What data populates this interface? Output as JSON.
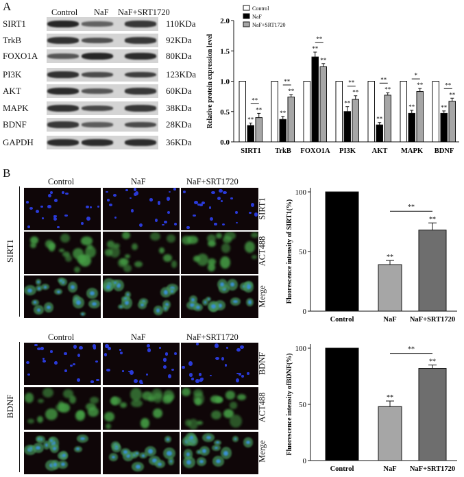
{
  "panelA": {
    "letter": "A",
    "blot_header": [
      "Control",
      "NaF",
      "NaF+SRT1720"
    ],
    "proteins": [
      {
        "name": "SIRT1",
        "kda": "110KDa",
        "bands": [
          0.85,
          0.35,
          0.7
        ]
      },
      {
        "name": "TrkB",
        "kda": "92KDa",
        "bands": [
          0.75,
          0.5,
          0.7
        ]
      },
      {
        "name": "FOXO1A",
        "kda": "80KDa",
        "bands": [
          0.45,
          0.85,
          0.8
        ]
      },
      {
        "name": "PI3K",
        "kda": "123KDa",
        "bands": [
          0.75,
          0.55,
          0.65
        ]
      },
      {
        "name": "AKT",
        "kda": "60KDa",
        "bands": [
          0.8,
          0.45,
          0.7
        ]
      },
      {
        "name": "MAPK",
        "kda": "38KDa",
        "bands": [
          0.75,
          0.55,
          0.7
        ]
      },
      {
        "name": "BDNF",
        "kda": "28KDa",
        "bands": [
          0.7,
          0.4,
          0.55
        ]
      },
      {
        "name": "GAPDH",
        "kda": "36KDa",
        "bands": [
          0.8,
          0.8,
          0.8
        ]
      }
    ]
  },
  "panelB": {
    "letter": "B",
    "col_headers": [
      "Control",
      "NaF",
      "NaF+SRT1720"
    ],
    "blocks": [
      {
        "side_label": "SIRT1",
        "row_labels": [
          "SIRT1",
          "ACT488",
          "Merge"
        ]
      },
      {
        "side_label": "BDNF",
        "row_labels": [
          "BDNF",
          "ACT488",
          "Merge"
        ]
      }
    ]
  },
  "chart_data": [
    {
      "type": "bar",
      "ylabel": "Relative protein expression level",
      "ylim": [
        0,
        2.0
      ],
      "yticks": [
        "0.0",
        "0.5",
        "1.0",
        "1.5",
        "2.0"
      ],
      "categories": [
        "SIRT1",
        "TrkB",
        "FOXO1A",
        "PI3K",
        "AKT",
        "MAPK",
        "BDNF"
      ],
      "series": [
        {
          "name": "Control",
          "color": "#ffffff",
          "values": [
            1.0,
            1.0,
            1.0,
            1.0,
            1.0,
            1.0,
            1.0
          ],
          "errors": [
            0,
            0,
            0,
            0,
            0,
            0,
            0
          ],
          "sig": [
            "",
            "",
            "",
            "",
            "",
            "",
            ""
          ]
        },
        {
          "name": "NaF",
          "color": "#000000",
          "values": [
            0.27,
            0.37,
            1.4,
            0.5,
            0.28,
            0.47,
            0.47
          ],
          "errors": [
            0.04,
            0.05,
            0.08,
            0.08,
            0.04,
            0.05,
            0.04
          ],
          "sig": [
            "**",
            "**",
            "**",
            "**",
            "**",
            "**",
            "**"
          ]
        },
        {
          "name": "NaF+SRT1720",
          "color": "#a6a6a6",
          "values": [
            0.4,
            0.74,
            1.24,
            0.7,
            0.77,
            0.83,
            0.67
          ],
          "errors": [
            0.07,
            0.04,
            0.05,
            0.06,
            0.04,
            0.05,
            0.05
          ],
          "sig": [
            "**",
            "**",
            "**",
            "**",
            "**",
            "**",
            "**"
          ]
        }
      ],
      "brackets": [
        "**",
        "**",
        "**",
        "**",
        "**",
        "*",
        "**"
      ],
      "legend": "top-left"
    },
    {
      "type": "bar",
      "ylabel": "Fluorescence intensity of SIRT1(%)",
      "ylim": [
        0,
        100
      ],
      "yticks": [
        "0",
        "50",
        "100"
      ],
      "categories": [
        "Control",
        "NaF",
        "NaF+SRT1720"
      ],
      "values": [
        100,
        39,
        68
      ],
      "errors": [
        0,
        3.5,
        6
      ],
      "colors": [
        "#000000",
        "#a6a6a6",
        "#6e6e6e"
      ],
      "sig": [
        "",
        "**",
        "**"
      ],
      "bracket": "**"
    },
    {
      "type": "bar",
      "ylabel": "Fluorescence intensity ofBDNF(%)",
      "ylim": [
        0,
        100
      ],
      "yticks": [
        "0",
        "50",
        "100"
      ],
      "categories": [
        "Control",
        "NaF",
        "NaF+SRT1720"
      ],
      "values": [
        100,
        48,
        82
      ],
      "errors": [
        0,
        5,
        3
      ],
      "colors": [
        "#000000",
        "#a6a6a6",
        "#6e6e6e"
      ],
      "sig": [
        "",
        "**",
        "**"
      ],
      "bracket": "**"
    }
  ]
}
